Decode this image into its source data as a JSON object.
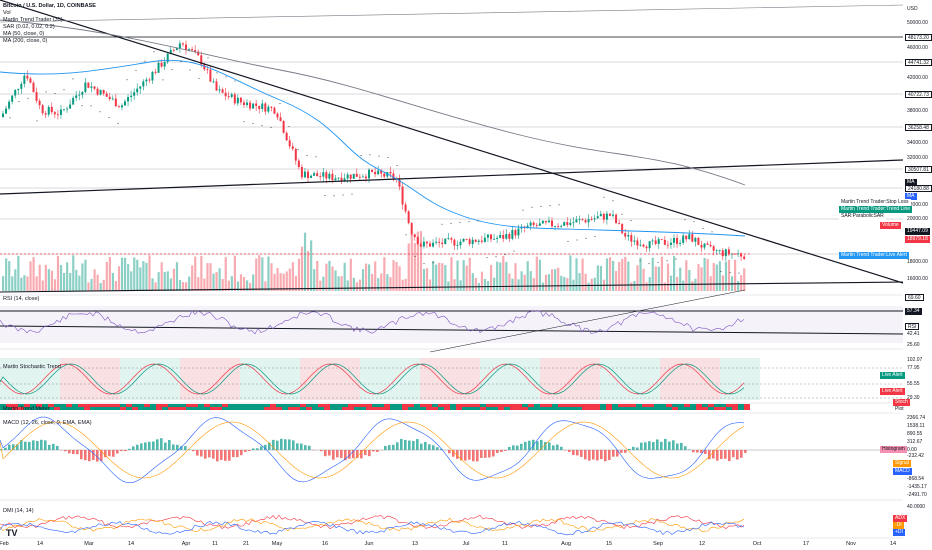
{
  "symbol": {
    "title": "Bitcoin / U.S. Dollar, 1D, COINBASE"
  },
  "legend": [
    "Vol",
    "Martin Trend Trader (35)",
    "SAR (0.02, 0.02, 0.2)",
    "MA (50, close, 0)",
    "MA (200, close, 0)"
  ],
  "main_price_labels": [
    {
      "text": "USD",
      "y": 9,
      "cls": "plain"
    },
    {
      "text": "50000.00",
      "y": 23,
      "cls": "plain"
    },
    {
      "text": "48173.20",
      "y": 37,
      "cls": ""
    },
    {
      "text": "46000.00",
      "y": 48,
      "cls": "plain"
    },
    {
      "text": "44741.32",
      "y": 62,
      "cls": ""
    },
    {
      "text": "42000.00",
      "y": 78,
      "cls": "plain"
    },
    {
      "text": "40722.73",
      "y": 94,
      "cls": ""
    },
    {
      "text": "38000.00",
      "y": 111,
      "cls": "plain"
    },
    {
      "text": "36258.48",
      "y": 127,
      "cls": ""
    },
    {
      "text": "34000.00",
      "y": 143,
      "cls": "plain"
    },
    {
      "text": "32000.00",
      "y": 158,
      "cls": "plain"
    },
    {
      "text": "30507.81",
      "y": 169,
      "cls": ""
    },
    {
      "text": "MA",
      "y": 182,
      "cls": "dark"
    },
    {
      "text": "24180.88",
      "y": 188,
      "cls": ""
    },
    {
      "text": "MA",
      "y": 196,
      "cls": "blue"
    },
    {
      "text": "22000.00",
      "y": 205,
      "cls": "plain"
    },
    {
      "text": "20000.00",
      "y": 219,
      "cls": "plain"
    },
    {
      "text": "19447.09",
      "y": 231,
      "cls": "dark"
    },
    {
      "text": "18979.18",
      "y": 239,
      "cls": "red"
    },
    {
      "text": "18000.00",
      "y": 262,
      "cls": "plain"
    },
    {
      "text": "16000.00",
      "y": 279,
      "cls": "plain"
    }
  ],
  "main_tags": [
    {
      "text": "Martin Trend Trader:Stop Loss",
      "x": 839,
      "y": 202,
      "cls": "white"
    },
    {
      "text": "Martin Trend Trader:Trend Line",
      "x": 839,
      "y": 209,
      "cls": "teal"
    },
    {
      "text": "SAR:ParabolicSAR",
      "x": 839,
      "y": 216,
      "cls": "white"
    },
    {
      "text": "Volume",
      "x": 880,
      "y": 225,
      "cls": "red"
    },
    {
      "text": "Martin Trend Trader:Live Alert",
      "x": 839,
      "y": 255,
      "cls": "sky"
    }
  ],
  "rsi": {
    "title": "RSI (14, close)",
    "labels": [
      {
        "text": "69.60",
        "y": 297,
        "cls": ""
      },
      {
        "text": "57.34",
        "y": 311,
        "cls": "dark"
      },
      {
        "text": "RSI",
        "y": 326,
        "cls": "purple"
      },
      {
        "text": "42.41",
        "y": 334,
        "cls": "plain"
      },
      {
        "text": "25.60",
        "y": 345,
        "cls": "plain"
      }
    ]
  },
  "stoch": {
    "title": "Martin Stochastic Trend",
    "labels": [
      {
        "text": "102.07",
        "y": 360,
        "cls": "plain"
      },
      {
        "text": "77.95",
        "y": 368,
        "cls": "plain"
      },
      {
        "text": "55.55",
        "y": 384,
        "cls": "plain"
      },
      {
        "text": "29.30",
        "y": 398,
        "cls": "plain"
      }
    ],
    "tags": [
      {
        "text": "Live Alert",
        "x": 880,
        "y": 375,
        "cls": "green"
      },
      {
        "text": "Live Alert",
        "x": 880,
        "y": 391,
        "cls": "red"
      },
      {
        "text": "Stoch",
        "x": 893,
        "y": 402,
        "cls": "red"
      },
      {
        "text": "Plot",
        "x": 893,
        "y": 409,
        "cls": "white"
      }
    ]
  },
  "meter": {
    "title": "Martin Trend Meter"
  },
  "macd": {
    "title": "MACD (12, 26, close, 9, EMA, EMA)",
    "labels": [
      {
        "text": "2366.74",
        "y": 418,
        "cls": "plain"
      },
      {
        "text": "1538.11",
        "y": 426,
        "cls": "plain"
      },
      {
        "text": "890.55",
        "y": 434,
        "cls": "plain"
      },
      {
        "text": "312.67",
        "y": 442,
        "cls": "plain"
      },
      {
        "text": "0.00",
        "y": 450,
        "cls": "plain"
      },
      {
        "text": "-232.42",
        "y": 456,
        "cls": "plain"
      },
      {
        "text": "-868.54",
        "y": 479,
        "cls": "plain"
      },
      {
        "text": "-1435.17",
        "y": 487,
        "cls": "plain"
      },
      {
        "text": "-2491.70",
        "y": 495,
        "cls": "plain"
      }
    ],
    "tags": [
      {
        "text": "Histogram",
        "x": 880,
        "y": 449,
        "cls": "pink"
      },
      {
        "text": "Signal",
        "x": 893,
        "y": 463,
        "cls": "orange"
      },
      {
        "text": "MACD",
        "x": 893,
        "y": 471,
        "cls": "blue"
      }
    ]
  },
  "dmi": {
    "title": "DMI (14, 14)",
    "labels": [
      {
        "text": "40.0000",
        "y": 507,
        "cls": "plain"
      }
    ],
    "tags": [
      {
        "text": "ADX",
        "x": 893,
        "y": 518,
        "cls": "red"
      },
      {
        "text": "-DI",
        "x": 893,
        "y": 525,
        "cls": "orange"
      },
      {
        "text": "+DI",
        "x": 893,
        "y": 532,
        "cls": "blue"
      }
    ]
  },
  "xaxis": [
    {
      "text": "Feb",
      "x": 4
    },
    {
      "text": "14",
      "x": 40
    },
    {
      "text": "Mar",
      "x": 89
    },
    {
      "text": "14",
      "x": 131
    },
    {
      "text": "Apr",
      "x": 186
    },
    {
      "text": "11",
      "x": 215
    },
    {
      "text": "21",
      "x": 246
    },
    {
      "text": "May",
      "x": 277
    },
    {
      "text": "16",
      "x": 325
    },
    {
      "text": "Jun",
      "x": 369
    },
    {
      "text": "13",
      "x": 415
    },
    {
      "text": "Jul",
      "x": 466
    },
    {
      "text": "11",
      "x": 505
    },
    {
      "text": "Aug",
      "x": 566
    },
    {
      "text": "15",
      "x": 609
    },
    {
      "text": "Sep",
      "x": 658
    },
    {
      "text": "12",
      "x": 702
    },
    {
      "text": "Oct",
      "x": 757
    },
    {
      "text": "17",
      "x": 806
    },
    {
      "text": "Nov",
      "x": 851
    },
    {
      "text": "14",
      "x": 893
    }
  ],
  "colors": {
    "up": "#089981",
    "down": "#f23645",
    "ma50": "#2196f3",
    "ma200": "#787b86",
    "rsi": "#7e57c2"
  }
}
